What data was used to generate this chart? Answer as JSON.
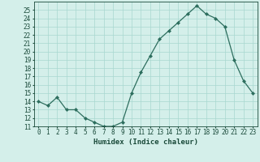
{
  "x": [
    0,
    1,
    2,
    3,
    4,
    5,
    6,
    7,
    8,
    9,
    10,
    11,
    12,
    13,
    14,
    15,
    16,
    17,
    18,
    19,
    20,
    21,
    22,
    23
  ],
  "y": [
    14,
    13.5,
    14.5,
    13,
    13,
    12,
    11.5,
    11,
    11,
    11.5,
    15,
    17.5,
    19.5,
    21.5,
    22.5,
    23.5,
    24.5,
    25.5,
    24.5,
    24,
    23,
    19,
    16.5,
    15
  ],
  "xlabel": "Humidex (Indice chaleur)",
  "xlim": [
    -0.5,
    23.5
  ],
  "ylim": [
    11,
    26
  ],
  "yticks": [
    11,
    12,
    13,
    14,
    15,
    16,
    17,
    18,
    19,
    20,
    21,
    22,
    23,
    24,
    25
  ],
  "xticks": [
    0,
    1,
    2,
    3,
    4,
    5,
    6,
    7,
    8,
    9,
    10,
    11,
    12,
    13,
    14,
    15,
    16,
    17,
    18,
    19,
    20,
    21,
    22,
    23
  ],
  "line_color": "#2d6e5e",
  "marker": "D",
  "marker_size": 2.0,
  "bg_color": "#d4efea",
  "grid_color": "#a8d8d0",
  "text_color": "#1a4a3a",
  "tick_fontsize": 5.5,
  "xlabel_fontsize": 6.5
}
